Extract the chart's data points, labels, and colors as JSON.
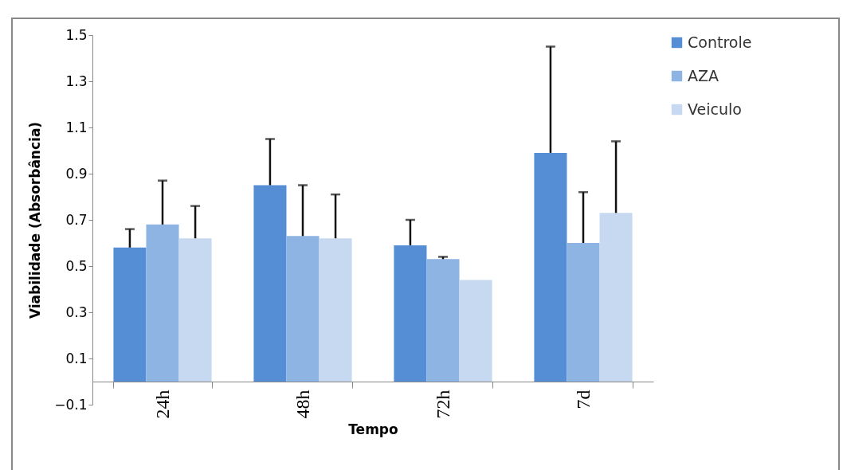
{
  "chart_data": {
    "type": "bar",
    "xlabel": "Tempo",
    "ylabel": "Viabilidade (Absorbância)",
    "categories": [
      "24h",
      "48h",
      "72h",
      "7d"
    ],
    "series": [
      {
        "name": "Controle",
        "color": "#558ed5",
        "values": [
          0.58,
          0.85,
          0.59,
          0.99
        ],
        "errors": [
          [
            0.58,
            0.66
          ],
          [
            0.85,
            1.05
          ],
          [
            0.59,
            0.7
          ],
          [
            0.99,
            1.45
          ]
        ]
      },
      {
        "name": "AZA",
        "color": "#8eb4e3",
        "values": [
          0.68,
          0.63,
          0.53,
          0.6
        ],
        "errors": [
          [
            0.68,
            0.87
          ],
          [
            0.63,
            0.85
          ],
          [
            0.53,
            0.54
          ],
          [
            0.6,
            0.82
          ]
        ]
      },
      {
        "name": "Veiculo",
        "color": "#c6d9f1",
        "values": [
          0.62,
          0.62,
          0.44,
          0.73
        ],
        "errors": [
          [
            0.62,
            0.76
          ],
          [
            0.62,
            0.81
          ],
          null,
          [
            0.73,
            1.04
          ]
        ]
      }
    ],
    "ylim": [
      -0.1,
      1.5
    ],
    "yticks": [
      -0.1,
      0.1,
      0.3,
      0.5,
      0.7,
      0.9,
      1.1,
      1.3,
      1.5
    ],
    "grid": false,
    "legend": "right"
  }
}
